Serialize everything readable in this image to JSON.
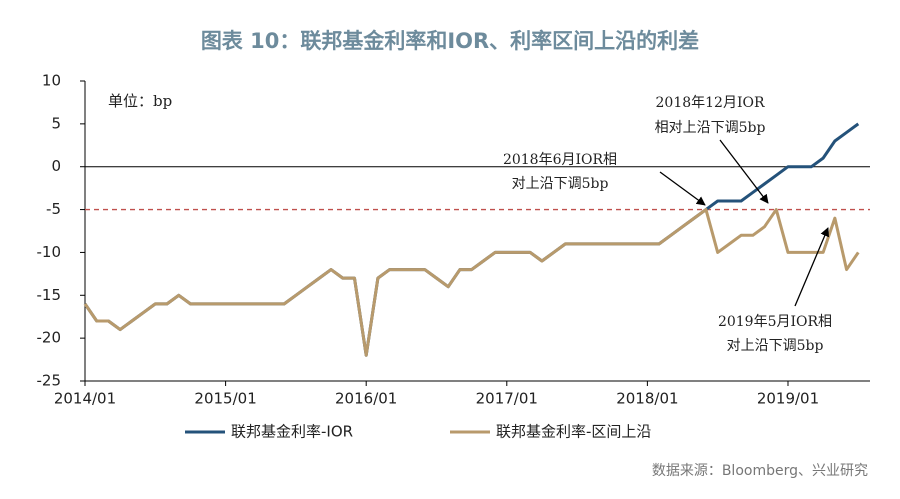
{
  "chart_data": {
    "type": "line",
    "title": "图表 10：联邦基金利率和IOR、利率区间上沿的利差",
    "unit_label": "单位：bp",
    "source": "数据来源：Bloomberg、兴业研究",
    "x": [
      "2014/01",
      "2014/02",
      "2014/03",
      "2014/04",
      "2014/05",
      "2014/06",
      "2014/07",
      "2014/08",
      "2014/09",
      "2014/10",
      "2014/11",
      "2014/12",
      "2015/01",
      "2015/02",
      "2015/03",
      "2015/04",
      "2015/05",
      "2015/06",
      "2015/07",
      "2015/08",
      "2015/09",
      "2015/10",
      "2015/11",
      "2015/12",
      "2016/01",
      "2016/02",
      "2016/03",
      "2016/04",
      "2016/05",
      "2016/06",
      "2016/07",
      "2016/08",
      "2016/09",
      "2016/10",
      "2016/11",
      "2016/12",
      "2017/01",
      "2017/02",
      "2017/03",
      "2017/04",
      "2017/05",
      "2017/06",
      "2017/07",
      "2017/08",
      "2017/09",
      "2017/10",
      "2017/11",
      "2017/12",
      "2018/01",
      "2018/02",
      "2018/03",
      "2018/04",
      "2018/05",
      "2018/06",
      "2018/07",
      "2018/08",
      "2018/09",
      "2018/10",
      "2018/11",
      "2018/12",
      "2019/01",
      "2019/02",
      "2019/03",
      "2019/04",
      "2019/05",
      "2019/06",
      "2019/07"
    ],
    "series": [
      {
        "name": "联邦基金利率-IOR",
        "color": "#24527a",
        "values": [
          -16,
          -18,
          -18,
          -19,
          -18,
          -17,
          -16,
          -16,
          -15,
          -16,
          -16,
          -16,
          -16,
          -16,
          -16,
          -16,
          -16,
          -16,
          -15,
          -14,
          -13,
          -12,
          -13,
          -13,
          -22,
          -13,
          -12,
          -12,
          -12,
          -12,
          -13,
          -14,
          -12,
          -12,
          -11,
          -10,
          -10,
          -10,
          -10,
          -11,
          -10,
          -9,
          -9,
          -9,
          -9,
          -9,
          -9,
          -9,
          -9,
          -9,
          -8,
          -7,
          -6,
          -5,
          -4,
          -4,
          -4,
          -3,
          -2,
          -1,
          0,
          0,
          0,
          1,
          3,
          4,
          5
        ]
      },
      {
        "name": "联邦基金利率-区间上沿",
        "color": "#b89a6c",
        "values": [
          -16,
          -18,
          -18,
          -19,
          -18,
          -17,
          -16,
          -16,
          -15,
          -16,
          -16,
          -16,
          -16,
          -16,
          -16,
          -16,
          -16,
          -16,
          -15,
          -14,
          -13,
          -12,
          -13,
          -13,
          -22,
          -13,
          -12,
          -12,
          -12,
          -12,
          -13,
          -14,
          -12,
          -12,
          -11,
          -10,
          -10,
          -10,
          -10,
          -11,
          -10,
          -9,
          -9,
          -9,
          -9,
          -9,
          -9,
          -9,
          -9,
          -9,
          -8,
          -7,
          -6,
          -5,
          -10,
          -9,
          -8,
          -8,
          -7,
          -5,
          -10,
          -10,
          -10,
          -10,
          -6,
          -12,
          -10
        ]
      }
    ],
    "hline": {
      "value": -5,
      "color": "#c0504d"
    },
    "xlim": [
      "2014/01",
      "2019/08"
    ],
    "xticks": [
      "2014/01",
      "2015/01",
      "2016/01",
      "2017/01",
      "2018/01",
      "2019/01"
    ],
    "ylim": [
      -25,
      10
    ],
    "yticks": [
      -25,
      -20,
      -15,
      -10,
      -5,
      0,
      5,
      10
    ],
    "annotations": [
      {
        "lines": [
          "2018年12月IOR",
          "相对上沿下调5bp"
        ]
      },
      {
        "lines": [
          "2018年6月IOR相",
          "对上沿下调5bp"
        ]
      },
      {
        "lines": [
          "2019年5月IOR相",
          "对上沿下调5bp"
        ]
      }
    ]
  }
}
